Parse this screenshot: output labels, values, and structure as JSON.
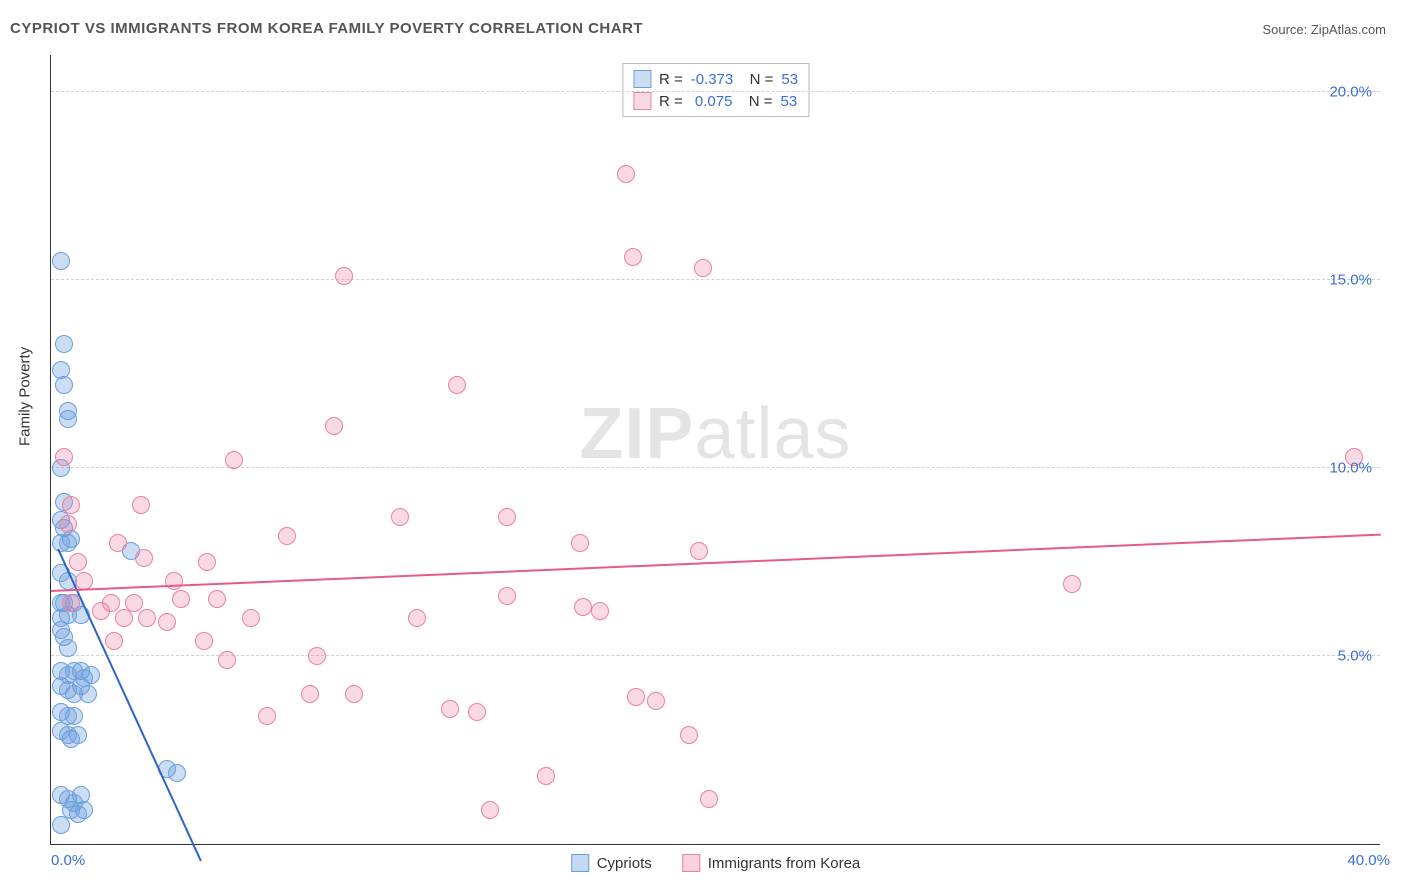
{
  "title": "CYPRIOT VS IMMIGRANTS FROM KOREA FAMILY POVERTY CORRELATION CHART",
  "source": "Source: ZipAtlas.com",
  "watermark_bold": "ZIP",
  "watermark_rest": "atlas",
  "ylabel": "Family Poverty",
  "chart": {
    "type": "scatter",
    "xlim": [
      0,
      40
    ],
    "ylim": [
      0,
      21
    ],
    "yticks": [
      5.0,
      10.0,
      15.0,
      20.0
    ],
    "ytick_labels": [
      "5.0%",
      "10.0%",
      "15.0%",
      "20.0%"
    ],
    "xtick_left": {
      "pos": 0,
      "label": "0.0%"
    },
    "xtick_right": {
      "pos": 40,
      "label": "40.0%"
    },
    "background_color": "#ffffff",
    "grid_color": "#d0d0d0",
    "marker_radius": 9,
    "series": [
      {
        "name": "Cypriots",
        "fill": "rgba(107,158,222,0.35)",
        "stroke": "#6b9ede",
        "R": "-0.373",
        "N": "53",
        "trend": {
          "x1": 0.2,
          "y1": 7.8,
          "x2": 4.5,
          "y2": -0.5,
          "color": "#2d64c7",
          "width": 2.2
        },
        "points": [
          [
            0.3,
            15.5
          ],
          [
            0.4,
            13.3
          ],
          [
            0.3,
            12.6
          ],
          [
            0.4,
            12.2
          ],
          [
            0.5,
            11.5
          ],
          [
            0.5,
            11.3
          ],
          [
            0.3,
            10.0
          ],
          [
            0.4,
            9.1
          ],
          [
            0.3,
            8.6
          ],
          [
            0.4,
            8.4
          ],
          [
            0.6,
            8.1
          ],
          [
            0.3,
            7.2
          ],
          [
            0.5,
            7.0
          ],
          [
            0.4,
            6.4
          ],
          [
            0.3,
            6.4
          ],
          [
            0.5,
            6.1
          ],
          [
            0.7,
            6.4
          ],
          [
            0.3,
            5.7
          ],
          [
            0.9,
            6.1
          ],
          [
            2.4,
            7.8
          ],
          [
            0.3,
            4.6
          ],
          [
            0.5,
            4.5
          ],
          [
            0.7,
            4.6
          ],
          [
            0.9,
            4.6
          ],
          [
            1.0,
            4.4
          ],
          [
            1.2,
            4.5
          ],
          [
            0.3,
            4.2
          ],
          [
            0.5,
            4.1
          ],
          [
            0.7,
            4.0
          ],
          [
            0.9,
            4.2
          ],
          [
            1.1,
            4.0
          ],
          [
            0.3,
            3.0
          ],
          [
            0.5,
            2.9
          ],
          [
            0.6,
            2.8
          ],
          [
            0.8,
            2.9
          ],
          [
            3.5,
            2.0
          ],
          [
            3.8,
            1.9
          ],
          [
            0.3,
            1.3
          ],
          [
            0.5,
            1.2
          ],
          [
            0.7,
            1.1
          ],
          [
            0.9,
            1.3
          ],
          [
            0.6,
            0.9
          ],
          [
            0.8,
            0.8
          ],
          [
            1.0,
            0.9
          ],
          [
            0.3,
            0.5
          ],
          [
            0.3,
            8.0
          ],
          [
            0.5,
            8.0
          ],
          [
            0.3,
            6.0
          ],
          [
            0.4,
            5.5
          ],
          [
            0.5,
            5.2
          ],
          [
            0.3,
            3.5
          ],
          [
            0.5,
            3.4
          ],
          [
            0.7,
            3.4
          ]
        ]
      },
      {
        "name": "Immigrants from Korea",
        "fill": "rgba(236,129,162,0.30)",
        "stroke": "#ec81a2",
        "R": "0.075",
        "N": "53",
        "trend": {
          "x1": 0,
          "y1": 6.7,
          "x2": 40,
          "y2": 8.2,
          "color": "#e75a8b",
          "width": 2
        },
        "points": [
          [
            17.3,
            17.8
          ],
          [
            17.5,
            15.6
          ],
          [
            19.6,
            15.3
          ],
          [
            8.8,
            15.1
          ],
          [
            12.2,
            12.2
          ],
          [
            8.5,
            11.1
          ],
          [
            5.5,
            10.2
          ],
          [
            0.4,
            10.3
          ],
          [
            39.2,
            10.3
          ],
          [
            0.6,
            9.0
          ],
          [
            2.7,
            9.0
          ],
          [
            10.5,
            8.7
          ],
          [
            13.7,
            8.7
          ],
          [
            7.1,
            8.2
          ],
          [
            15.9,
            8.0
          ],
          [
            19.5,
            7.8
          ],
          [
            2.8,
            7.6
          ],
          [
            4.7,
            7.5
          ],
          [
            3.7,
            7.0
          ],
          [
            13.7,
            6.6
          ],
          [
            30.7,
            6.9
          ],
          [
            0.6,
            6.4
          ],
          [
            1.8,
            6.4
          ],
          [
            2.5,
            6.4
          ],
          [
            16.0,
            6.3
          ],
          [
            16.5,
            6.2
          ],
          [
            2.2,
            6.0
          ],
          [
            2.9,
            6.0
          ],
          [
            3.5,
            5.9
          ],
          [
            1.9,
            5.4
          ],
          [
            4.6,
            5.4
          ],
          [
            5.3,
            4.9
          ],
          [
            7.8,
            4.0
          ],
          [
            9.1,
            4.0
          ],
          [
            12.0,
            3.6
          ],
          [
            12.8,
            3.5
          ],
          [
            17.6,
            3.9
          ],
          [
            18.2,
            3.8
          ],
          [
            6.5,
            3.4
          ],
          [
            19.2,
            2.9
          ],
          [
            14.9,
            1.8
          ],
          [
            19.8,
            1.2
          ],
          [
            13.2,
            0.9
          ],
          [
            3.9,
            6.5
          ],
          [
            6.0,
            6.0
          ],
          [
            1.0,
            7.0
          ],
          [
            1.5,
            6.2
          ],
          [
            0.8,
            7.5
          ],
          [
            11.0,
            6.0
          ],
          [
            8.0,
            5.0
          ],
          [
            5.0,
            6.5
          ],
          [
            2.0,
            8.0
          ],
          [
            0.5,
            8.5
          ]
        ]
      }
    ],
    "legend": [
      {
        "label": "Cypriots",
        "fill": "rgba(107,158,222,0.4)",
        "stroke": "#6b9ede"
      },
      {
        "label": "Immigrants from Korea",
        "fill": "rgba(236,129,162,0.35)",
        "stroke": "#ec81a2"
      }
    ]
  }
}
